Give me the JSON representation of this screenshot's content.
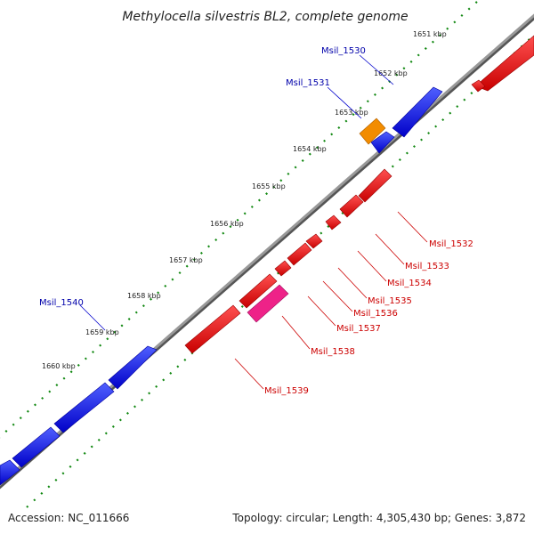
{
  "title": "Methylocella silvestris BL2, complete genome",
  "footer": {
    "accession": "Accession: NC_011666",
    "summary": "Topology: circular; Length: 4,305,430 bp; Genes: 3,872"
  },
  "colors": {
    "forward_gene": "#0000ee",
    "reverse_gene": "#ee0000",
    "orange_gene": "#f08c00",
    "pink_gene": "#ee2288",
    "backbone": "#888888",
    "tick_dots": "#118811",
    "forward_label": "#0000aa",
    "reverse_label": "#cc0000"
  },
  "ticks": [
    "1651 kbp",
    "1652 kbp",
    "1653 kbp",
    "1654 kbp",
    "1655 kbp",
    "1656 kbp",
    "1657 kbp",
    "1658 kbp",
    "1659 kbp",
    "1660 kbp"
  ],
  "labels": {
    "forward": [
      "Msil_1530",
      "Msil_1531",
      "Msil_1540"
    ],
    "reverse": [
      "Msil_1532",
      "Msil_1533",
      "Msil_1534",
      "Msil_1535",
      "Msil_1536",
      "Msil_1537",
      "Msil_1538",
      "Msil_1539"
    ]
  }
}
